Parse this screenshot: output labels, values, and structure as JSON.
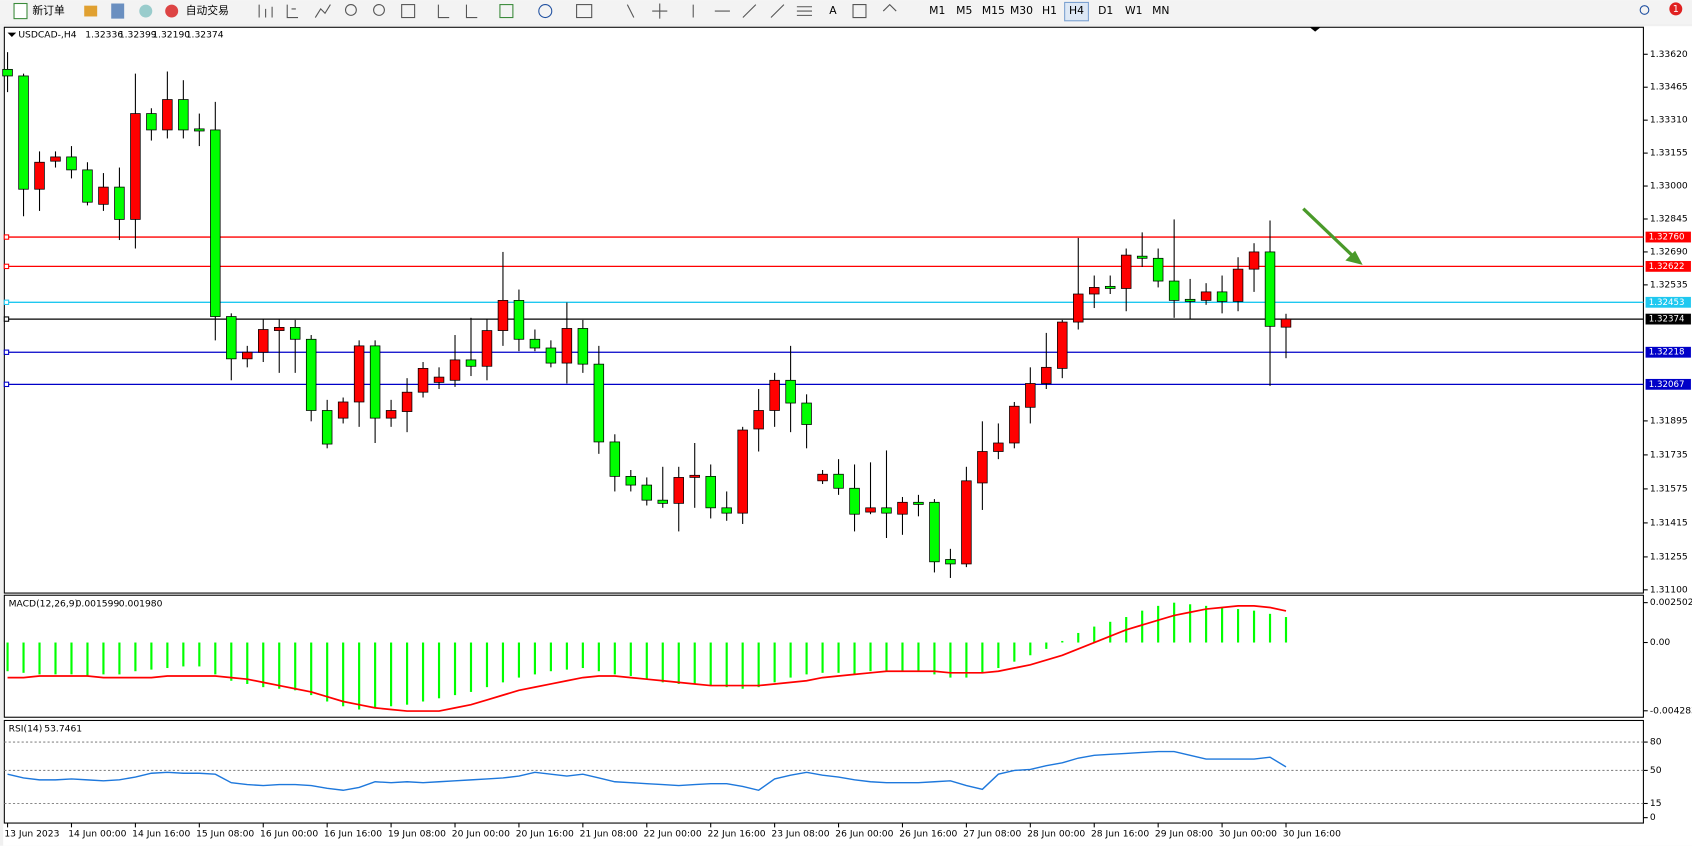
{
  "toolbar": {
    "new_order": "新订单",
    "auto_trading": "自动交易",
    "timeframes": [
      "M1",
      "M5",
      "M15",
      "M30",
      "H1",
      "H4",
      "D1",
      "W1",
      "MN"
    ],
    "active_timeframe": 5,
    "badge": "1"
  },
  "chart_data": [
    {
      "type": "candlestick",
      "symbol": "USDCAD-,H4",
      "up_color": "#ff0000",
      "down_color": "#00ff00",
      "last_bar_labels": [
        "1.32336",
        "1.32399",
        "1.32190",
        "1.32374"
      ],
      "categories": [
        "13 Jun 2023",
        null,
        null,
        null,
        "14 Jun 00:00",
        null,
        null,
        null,
        "14 Jun 16:00",
        null,
        null,
        null,
        "15 Jun 08:00",
        null,
        null,
        null,
        "16 Jun 00:00",
        null,
        null,
        null,
        "16 Jun 16:00",
        null,
        null,
        null,
        "19 Jun 08:00",
        null,
        null,
        null,
        "20 Jun 00:00",
        null,
        null,
        null,
        "20 Jun 16:00",
        null,
        null,
        null,
        "21 Jun 08:00",
        null,
        null,
        null,
        "22 Jun 00:00",
        null,
        null,
        null,
        "22 Jun 16:00",
        null,
        null,
        null,
        "23 Jun 08:00",
        null,
        null,
        null,
        "26 Jun 00:00",
        null,
        null,
        null,
        "26 Jun 16:00",
        null,
        null,
        null,
        "27 Jun 08:00",
        null,
        null,
        null,
        "28 Jun 00:00",
        null,
        null,
        null,
        "28 Jun 16:00",
        null,
        null,
        null,
        "29 Jun 08:00",
        null,
        null,
        null,
        "30 Jun 00:00",
        null,
        null,
        null,
        "30 Jun 16:00"
      ],
      "candles": [
        [
          1.33549,
          1.3363,
          1.33442,
          1.33518
        ],
        [
          1.33518,
          1.33529,
          1.32858,
          1.32985
        ],
        [
          1.32985,
          1.33163,
          1.32883,
          1.33112
        ],
        [
          1.33117,
          1.33163,
          1.33087,
          1.33137
        ],
        [
          1.33137,
          1.33188,
          1.33036,
          1.33076
        ],
        [
          1.33076,
          1.33112,
          1.32909,
          1.32924
        ],
        [
          1.32914,
          1.33061,
          1.32883,
          1.32995
        ],
        [
          1.32995,
          1.33087,
          1.32746,
          1.32843
        ],
        [
          1.32843,
          1.33529,
          1.32706,
          1.33341
        ],
        [
          1.33341,
          1.33366,
          1.33214,
          1.33264
        ],
        [
          1.33264,
          1.33539,
          1.33224,
          1.33407
        ],
        [
          1.33407,
          1.33498,
          1.33224,
          1.33264
        ],
        [
          1.33269,
          1.33341,
          1.33188,
          1.33259
        ],
        [
          1.33264,
          1.33396,
          1.32274,
          1.32386
        ],
        [
          1.32386,
          1.32401,
          1.32086,
          1.32187
        ],
        [
          1.32187,
          1.32248,
          1.32147,
          1.32218
        ],
        [
          1.32218,
          1.32375,
          1.32172,
          1.32325
        ],
        [
          1.3232,
          1.32375,
          1.32121,
          1.32335
        ],
        [
          1.32335,
          1.3237,
          1.32121,
          1.32279
        ],
        [
          1.32279,
          1.32299,
          1.31893,
          1.31944
        ],
        [
          1.31944,
          1.31994,
          1.31766,
          1.31786
        ],
        [
          1.31908,
          1.32005,
          1.31883,
          1.31984
        ],
        [
          1.31984,
          1.32274,
          1.31867,
          1.32248
        ],
        [
          1.32248,
          1.32274,
          1.31791,
          1.31908
        ],
        [
          1.31908,
          1.31994,
          1.31867,
          1.31944
        ],
        [
          1.31939,
          1.32096,
          1.31842,
          1.3203
        ],
        [
          1.3203,
          1.32172,
          1.32005,
          1.32142
        ],
        [
          1.32076,
          1.32147,
          1.32045,
          1.32101
        ],
        [
          1.32086,
          1.32299,
          1.32055,
          1.32182
        ],
        [
          1.32182,
          1.3238,
          1.32106,
          1.32152
        ],
        [
          1.32152,
          1.32375,
          1.32086,
          1.3232
        ],
        [
          1.3232,
          1.3269,
          1.32248,
          1.32462
        ],
        [
          1.32462,
          1.32513,
          1.32223,
          1.32279
        ],
        [
          1.32279,
          1.32325,
          1.32223,
          1.32238
        ],
        [
          1.32238,
          1.32274,
          1.32147,
          1.32167
        ],
        [
          1.32167,
          1.32452,
          1.32071,
          1.3233
        ],
        [
          1.3233,
          1.3237,
          1.32121,
          1.32162
        ],
        [
          1.32162,
          1.32248,
          1.3174,
          1.31796
        ],
        [
          1.31796,
          1.31832,
          1.31563,
          1.31634
        ],
        [
          1.31634,
          1.31664,
          1.31563,
          1.31593
        ],
        [
          1.31593,
          1.31629,
          1.31497,
          1.31522
        ],
        [
          1.31522,
          1.31679,
          1.31486,
          1.31507
        ],
        [
          1.31507,
          1.31679,
          1.31375,
          1.31629
        ],
        [
          1.31629,
          1.31791,
          1.31486,
          1.31639
        ],
        [
          1.31634,
          1.3169,
          1.31436,
          1.31486
        ],
        [
          1.31486,
          1.31563,
          1.31425,
          1.31461
        ],
        [
          1.31461,
          1.31867,
          1.3141,
          1.31852
        ],
        [
          1.31857,
          1.32045,
          1.31751,
          1.31944
        ],
        [
          1.31944,
          1.32121,
          1.31867,
          1.32086
        ],
        [
          1.32086,
          1.32248,
          1.31842,
          1.31979
        ],
        [
          1.31979,
          1.3202,
          1.31766,
          1.31878
        ],
        [
          1.31613,
          1.31664,
          1.31598,
          1.31644
        ],
        [
          1.31644,
          1.31715,
          1.31547,
          1.31578
        ],
        [
          1.31578,
          1.3169,
          1.31375,
          1.31456
        ],
        [
          1.31466,
          1.317,
          1.31456,
          1.31486
        ],
        [
          1.31486,
          1.31756,
          1.31344,
          1.31461
        ],
        [
          1.31456,
          1.31537,
          1.31359,
          1.31512
        ],
        [
          1.31512,
          1.31547,
          1.31446,
          1.31502
        ],
        [
          1.31512,
          1.31527,
          1.31182,
          1.31232
        ],
        [
          1.31243,
          1.31293,
          1.31156,
          1.31222
        ],
        [
          1.31222,
          1.31679,
          1.31207,
          1.31613
        ],
        [
          1.31603,
          1.31893,
          1.31476,
          1.31751
        ],
        [
          1.31751,
          1.31883,
          1.31715,
          1.31791
        ],
        [
          1.31791,
          1.31984,
          1.31766,
          1.31964
        ],
        [
          1.31959,
          1.32147,
          1.31883,
          1.32071
        ],
        [
          1.32071,
          1.32309,
          1.32045,
          1.32147
        ],
        [
          1.32142,
          1.3237,
          1.32096,
          1.3236
        ],
        [
          1.3236,
          1.32756,
          1.32325,
          1.32492
        ],
        [
          1.32492,
          1.32579,
          1.32426,
          1.32523
        ],
        [
          1.32528,
          1.32579,
          1.32492,
          1.32518
        ],
        [
          1.32518,
          1.32706,
          1.32411,
          1.32675
        ],
        [
          1.3267,
          1.32782,
          1.32619,
          1.3266
        ],
        [
          1.3266,
          1.32706,
          1.32523,
          1.32553
        ],
        [
          1.32553,
          1.32843,
          1.3238,
          1.32462
        ],
        [
          1.32467,
          1.32563,
          1.32375,
          1.32457
        ],
        [
          1.32462,
          1.32543,
          1.32441,
          1.32502
        ],
        [
          1.32502,
          1.32579,
          1.32401,
          1.32457
        ],
        [
          1.32457,
          1.32665,
          1.32411,
          1.32609
        ],
        [
          1.32609,
          1.32731,
          1.32502,
          1.3269
        ],
        [
          1.3269,
          1.32838,
          1.3206,
          1.3234
        ],
        [
          1.32336,
          1.32399,
          1.3219,
          1.32374
        ]
      ],
      "ylim": [
        1.3109,
        1.33742
      ],
      "yticks": [
        {
          "value": 1.3362,
          "label": "1.33620"
        },
        1.33465,
        {
          "value": 1.3331,
          "label": "1.33310"
        },
        1.33155,
        {
          "value": 1.33,
          "label": "1.33000"
        },
        1.32845,
        {
          "value": 1.3269,
          "label": "1.32690"
        },
        1.32535,
        1.31895,
        1.31735,
        1.31575,
        1.31415,
        1.31255,
        {
          "value": 1.311,
          "label": "1.31100"
        }
      ],
      "levels": [
        {
          "value": 1.3276,
          "label": "1.32760",
          "color": "#ff0000"
        },
        {
          "value": 1.32622,
          "label": "1.32622",
          "color": "#ff0000"
        },
        {
          "value": 1.32453,
          "label": "1.32453",
          "color": "#1ec8f0"
        },
        {
          "value": 1.32374,
          "label": "1.32374",
          "color": "#000000"
        },
        {
          "value": 1.32218,
          "label": "1.32218",
          "color": "#0000c8"
        },
        {
          "value": 1.32067,
          "label": "1.32067",
          "color": "#0000c8"
        }
      ]
    },
    {
      "type": "macd",
      "title": "MACD(12,26,9)",
      "readout": [
        "0.001599",
        "0.001980"
      ],
      "color": "#00ff00",
      "signal_color": "#ff0000",
      "values": [
        -0.0018,
        -0.0019,
        -0.002,
        -0.002,
        -0.002,
        -0.0021,
        -0.002,
        -0.002,
        -0.0018,
        -0.0017,
        -0.0016,
        -0.0015,
        -0.0015,
        -0.002,
        -0.0024,
        -0.0026,
        -0.0028,
        -0.0029,
        -0.003,
        -0.0033,
        -0.0037,
        -0.004,
        -0.0042,
        -0.0041,
        -0.004,
        -0.0039,
        -0.0037,
        -0.0035,
        -0.0033,
        -0.0031,
        -0.0028,
        -0.0025,
        -0.0022,
        -0.002,
        -0.0018,
        -0.0017,
        -0.0016,
        -0.0018,
        -0.002,
        -0.0021,
        -0.0023,
        -0.0025,
        -0.0026,
        -0.0026,
        -0.0027,
        -0.0028,
        -0.0029,
        -0.0028,
        -0.0025,
        -0.0022,
        -0.002,
        -0.0019,
        -0.0019,
        -0.002,
        -0.0018,
        -0.0018,
        -0.0018,
        -0.0018,
        -0.002,
        -0.0022,
        -0.0022,
        -0.0019,
        -0.0016,
        -0.0012,
        -0.0008,
        -0.0004,
        0.0001,
        0.0006,
        0.001,
        0.0013,
        0.0016,
        0.002,
        0.0023,
        0.0025,
        0.0024,
        0.0023,
        0.0022,
        0.0021,
        0.002,
        0.0018,
        0.001599
      ],
      "signal": [
        -0.0022,
        -0.0022,
        -0.0021,
        -0.0021,
        -0.0021,
        -0.0021,
        -0.0022,
        -0.0022,
        -0.0022,
        -0.0022,
        -0.0021,
        -0.0021,
        -0.0021,
        -0.0021,
        -0.0022,
        -0.0023,
        -0.0025,
        -0.0027,
        -0.0029,
        -0.0031,
        -0.0034,
        -0.0037,
        -0.0039,
        -0.0041,
        -0.0042,
        -0.0043,
        -0.0043,
        -0.0043,
        -0.0041,
        -0.0039,
        -0.0036,
        -0.0033,
        -0.003,
        -0.0028,
        -0.0026,
        -0.0024,
        -0.0022,
        -0.0021,
        -0.0021,
        -0.0022,
        -0.0023,
        -0.0024,
        -0.0025,
        -0.0026,
        -0.0027,
        -0.0027,
        -0.0027,
        -0.0027,
        -0.0026,
        -0.0025,
        -0.0024,
        -0.0022,
        -0.0021,
        -0.002,
        -0.0019,
        -0.0018,
        -0.0018,
        -0.0018,
        -0.0018,
        -0.0019,
        -0.0019,
        -0.0019,
        -0.0018,
        -0.0016,
        -0.0014,
        -0.0011,
        -0.0008,
        -0.0004,
        0,
        0.0004,
        0.0008,
        0.0011,
        0.0014,
        0.0017,
        0.0019,
        0.0021,
        0.0022,
        0.0023,
        0.0023,
        0.0022,
        0.00198
      ],
      "ylim": [
        -0.00462,
        0.0029
      ],
      "yticks": [
        0.002502,
        {
          "value": 0,
          "label": "0.00"
        },
        -0.004283
      ]
    },
    {
      "type": "rsi",
      "title": "RSI(14)",
      "color": "#1e78dc",
      "values": [
        46,
        42,
        40,
        40,
        41,
        40,
        39,
        40,
        43,
        47,
        48,
        47,
        47,
        46,
        37,
        35,
        34,
        35,
        35,
        34,
        31,
        29,
        32,
        38,
        37,
        38,
        37,
        38,
        39,
        40,
        41,
        42,
        44,
        48,
        46,
        44,
        46,
        42,
        38,
        37,
        36,
        35,
        34,
        35,
        36,
        36,
        33,
        29,
        41,
        45,
        48,
        45,
        43,
        40,
        38,
        37,
        37,
        37,
        38,
        39,
        34,
        30,
        46,
        50,
        51,
        55,
        58,
        63,
        66,
        67,
        68,
        69,
        70,
        70,
        66,
        62,
        62,
        62,
        62,
        64,
        53.7461
      ],
      "ylim": [
        0,
        100
      ],
      "yticks": [
        80,
        50,
        15,
        0
      ],
      "grid": "dotted"
    }
  ]
}
